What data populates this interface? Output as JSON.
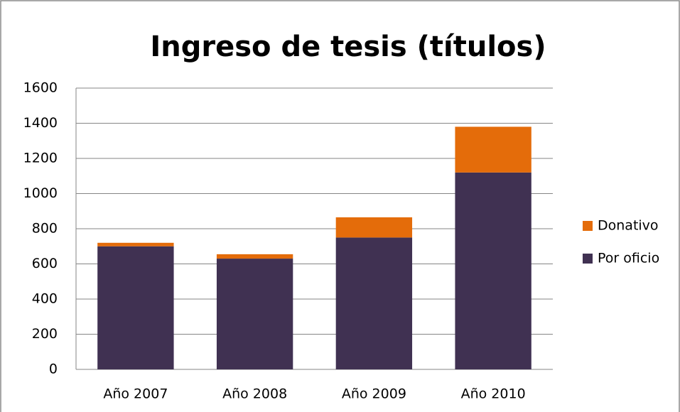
{
  "chart_data": {
    "type": "stacked_bar",
    "title": "Ingreso de tesis (títulos)",
    "categories": [
      "Año 2007",
      "Año 2008",
      "Año 2009",
      "Año 2010"
    ],
    "series": [
      {
        "name": "Por oficio",
        "color": "#403152",
        "values": [
          700,
          630,
          750,
          1120
        ]
      },
      {
        "name": "Donativo",
        "color": "#e46c0a",
        "values": [
          20,
          25,
          115,
          260
        ]
      }
    ],
    "ylim": [
      0,
      1600
    ],
    "yticks": [
      0,
      200,
      400,
      600,
      800,
      1000,
      1200,
      1400,
      1600
    ],
    "grid": true,
    "legend": "right"
  }
}
